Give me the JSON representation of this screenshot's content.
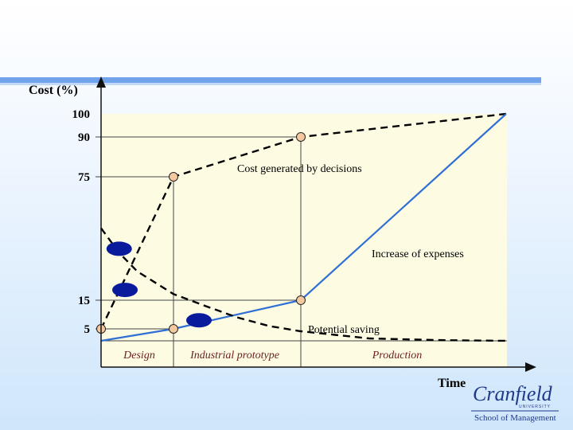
{
  "chart_data": {
    "type": "line",
    "ylabel": "Cost (%)",
    "xlabel": "Time",
    "yticks": [
      "100",
      "90",
      "75",
      "15",
      "5"
    ],
    "phases": [
      "Design",
      "Industrial prototype",
      "Production"
    ],
    "series": [
      {
        "name": "Cost generated by decisions",
        "style": "dashed",
        "color": "#000000",
        "points": [
          [
            0,
            5
          ],
          [
            1,
            75
          ],
          [
            3,
            90
          ],
          [
            6,
            100
          ]
        ]
      },
      {
        "name": "Increase of expenses",
        "style": "solid",
        "color": "#2f6fd6",
        "points": [
          [
            0,
            0
          ],
          [
            1,
            5
          ],
          [
            3,
            15
          ],
          [
            6,
            100
          ]
        ]
      },
      {
        "name": "Potential saving",
        "style": "dashed",
        "color": "#000000",
        "points": [
          [
            0,
            50
          ],
          [
            0.25,
            38
          ],
          [
            0.5,
            29
          ],
          [
            1,
            18
          ],
          [
            1.5,
            13
          ],
          [
            2,
            9
          ],
          [
            2.5,
            6
          ],
          [
            3,
            4
          ],
          [
            3.5,
            2.5
          ],
          [
            4,
            1
          ],
          [
            5,
            0.3
          ],
          [
            6,
            0
          ]
        ]
      }
    ],
    "markers": [
      [
        0,
        5
      ],
      [
        1,
        75
      ],
      [
        3,
        90
      ],
      [
        1,
        5
      ],
      [
        3,
        15
      ]
    ],
    "ellipses": [
      [
        0.25,
        40
      ],
      [
        0.33,
        20
      ],
      [
        1.4,
        8
      ]
    ]
  },
  "logo": {
    "name": "Cranfield",
    "university": "UNIVERSITY",
    "school": "School of Management"
  },
  "colors": {
    "plot_bg": "#fefbe3",
    "accent_blue": "#2f6fd6",
    "marker_fill": "#f4c9a0",
    "ellipse_fill": "#0a1a9c"
  }
}
